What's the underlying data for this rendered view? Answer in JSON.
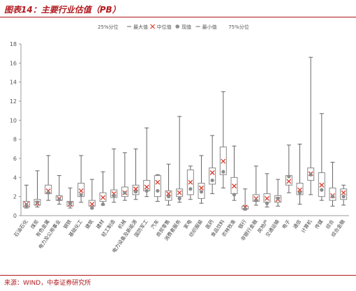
{
  "figure": {
    "title": "图表14：主要行业估值（PB）",
    "source": "来源：WIND，中泰证券研究所"
  },
  "chart_data": {
    "type": "box",
    "ylim": [
      0,
      18
    ],
    "yticks": [
      0,
      2,
      4,
      6,
      8,
      10,
      12,
      14,
      16,
      18
    ],
    "grid": false,
    "legend_position": "top-center",
    "legend": [
      {
        "key": "q25",
        "label": "25%分位"
      },
      {
        "key": "max",
        "label": "最大值"
      },
      {
        "key": "median",
        "label": "中位值"
      },
      {
        "key": "current",
        "label": "现值"
      },
      {
        "key": "min",
        "label": "最小值"
      },
      {
        "key": "q75",
        "label": "75%分位"
      }
    ],
    "categories": [
      "石油石化",
      "煤炭",
      "有色金属",
      "电力及公用事业",
      "钢铁",
      "基础化工",
      "建筑",
      "建材",
      "轻工制造",
      "机械",
      "电力设备及新能源",
      "国防军工",
      "汽车",
      "商贸零售",
      "消费者服务",
      "家电",
      "纺织服装",
      "医药",
      "食品饮料",
      "农林牧渔",
      "银行",
      "非银行金融",
      "房地产",
      "交通运输",
      "电子",
      "通信",
      "计算机",
      "传媒",
      "综合",
      "综合金融"
    ],
    "series": {
      "min": [
        0.8,
        0.9,
        1.6,
        1.2,
        0.8,
        1.4,
        0.8,
        1.1,
        1.4,
        1.6,
        1.7,
        2.0,
        1.5,
        1.1,
        1.4,
        1.7,
        1.3,
        2.3,
        2.9,
        1.6,
        0.6,
        1.1,
        0.9,
        1.0,
        2.4,
        1.2,
        2.2,
        1.6,
        1.0,
        1.1
      ],
      "q25": [
        0.9,
        1.1,
        2.3,
        1.6,
        1.0,
        2.0,
        1.0,
        1.5,
        1.9,
        2.0,
        2.2,
        2.6,
        2.0,
        1.6,
        2.0,
        2.2,
        1.8,
        3.3,
        4.3,
        2.3,
        0.7,
        1.5,
        1.4,
        1.4,
        3.2,
        2.2,
        3.7,
        2.0,
        1.6,
        1.7
      ],
      "median": [
        1.2,
        1.3,
        2.6,
        1.8,
        1.2,
        2.6,
        1.2,
        1.9,
        2.3,
        2.4,
        2.8,
        3.0,
        3.5,
        2.3,
        2.4,
        3.5,
        2.9,
        4.5,
        5.7,
        3.1,
        0.9,
        1.8,
        1.8,
        1.7,
        3.6,
        2.7,
        4.4,
        3.2,
        2.1,
        2.4
      ],
      "current": [
        1.1,
        1.4,
        2.4,
        1.7,
        1.3,
        2.2,
        0.8,
        1.2,
        2.1,
        2.4,
        2.5,
        2.6,
        2.6,
        2.0,
        1.8,
        2.8,
        2.5,
        3.7,
        4.6,
        2.2,
        0.7,
        1.6,
        1.3,
        1.8,
        4.1,
        2.4,
        4.3,
        2.7,
        2.0,
        2.0
      ],
      "q75": [
        1.5,
        1.7,
        3.2,
        2.1,
        1.5,
        3.4,
        1.6,
        2.4,
        2.7,
        3.0,
        3.2,
        3.7,
        4.2,
        2.6,
        2.8,
        4.8,
        3.4,
        5.0,
        7.2,
        4.0,
        1.0,
        2.2,
        2.3,
        2.1,
        4.2,
        3.4,
        5.0,
        4.5,
        2.9,
        2.8
      ],
      "max": [
        3.2,
        4.7,
        6.3,
        4.2,
        2.9,
        6.3,
        3.8,
        4.6,
        7.0,
        6.6,
        7.0,
        9.2,
        4.3,
        5.4,
        10.4,
        5.2,
        6.3,
        8.4,
        13.0,
        7.3,
        2.8,
        5.2,
        4.4,
        3.8,
        7.4,
        7.5,
        16.6,
        10.7,
        5.6,
        3.2
      ]
    }
  },
  "colors": {
    "accent": "#b0191e",
    "box": "#888888",
    "whisker": "#666666",
    "median": "#d93a2a",
    "current": "#8c8c8c",
    "axis": "#999999"
  }
}
